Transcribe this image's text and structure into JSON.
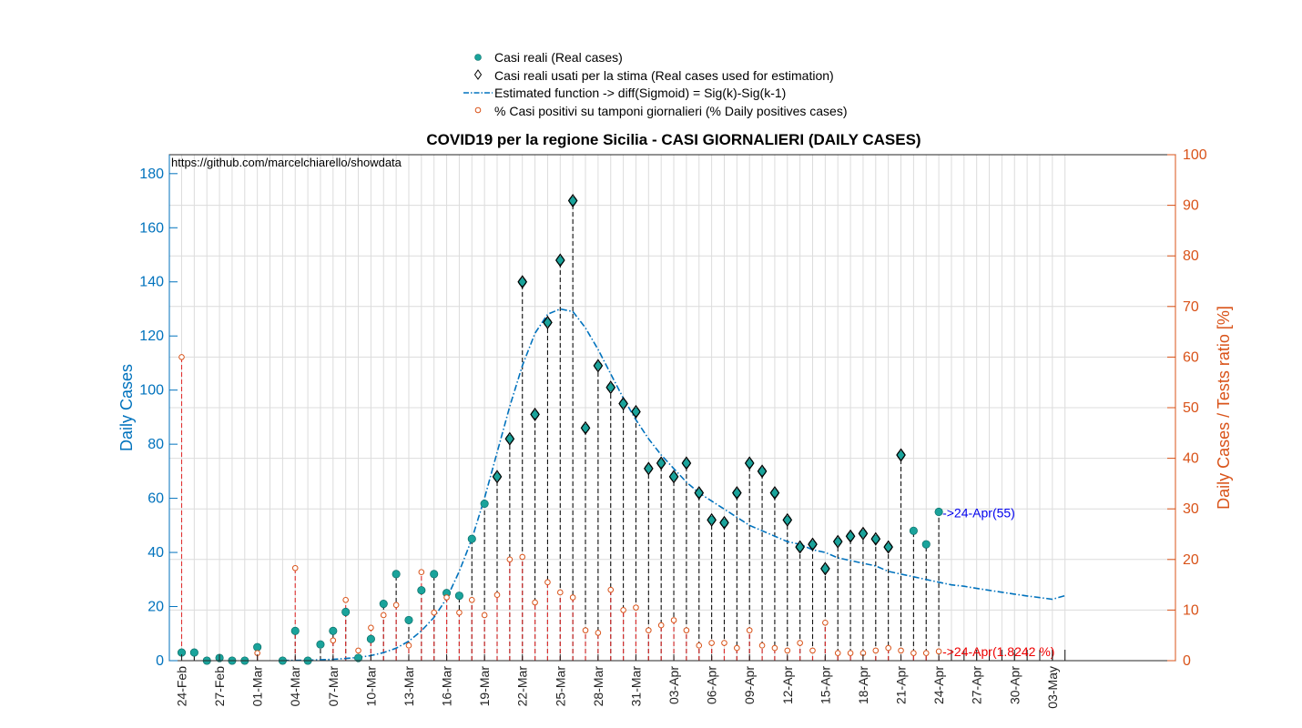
{
  "chart_data": {
    "type": "line",
    "title": "COVID19 per la regione Sicilia - CASI GIORNALIERI (DAILY CASES)",
    "annotation_url": "https://github.com/marcelchiarello/showdata",
    "ylabel_left": "Daily Cases",
    "ylabel_right": "Daily Cases / Tests ratio [%]",
    "ylim_left": [
      0,
      187
    ],
    "ylim_right": [
      0,
      100
    ],
    "yticks_left": [
      "0",
      "20",
      "40",
      "60",
      "80",
      "100",
      "120",
      "140",
      "160",
      "180"
    ],
    "yticks_right": [
      "0",
      "10",
      "20",
      "30",
      "40",
      "50",
      "60",
      "70",
      "80",
      "90",
      "100"
    ],
    "xticks": [
      "24-Feb",
      "27-Feb",
      "01-Mar",
      "04-Mar",
      "07-Mar",
      "10-Mar",
      "13-Mar",
      "16-Mar",
      "19-Mar",
      "22-Mar",
      "25-Mar",
      "28-Mar",
      "31-Mar",
      "03-Apr",
      "06-Apr",
      "09-Apr",
      "12-Apr",
      "15-Apr",
      "18-Apr",
      "21-Apr",
      "24-Apr",
      "27-Apr",
      "30-Apr",
      "03-May"
    ],
    "x_start": "24-Feb",
    "grid": true,
    "legend_position": "top",
    "colors": {
      "left_axis": "#0072BD",
      "right_axis": "#D95319",
      "real": "#1AA39B",
      "fit": "#0072BD",
      "pct": "#D95319",
      "stem_pct": "#E03030",
      "annot_cases": "#0000EE",
      "annot_pct": "#EE0000"
    },
    "series": [
      {
        "name": "Casi reali (Real cases)",
        "values": [
          3,
          3,
          0,
          1,
          0,
          0,
          5,
          null,
          0,
          11,
          0,
          6,
          11,
          18,
          1,
          8,
          21,
          32,
          15,
          26,
          32,
          25,
          24,
          45,
          58,
          68,
          82,
          140,
          91,
          125,
          148,
          170,
          86,
          109,
          101,
          95,
          92,
          71,
          73,
          68,
          73,
          62,
          52,
          51,
          62,
          73,
          70,
          62,
          52,
          42,
          43,
          34,
          44,
          46,
          47,
          45,
          42,
          76,
          48,
          43,
          55
        ]
      },
      {
        "name": "Casi reali usati per la stima (Real cases used for estimation)",
        "values": [
          null,
          null,
          null,
          null,
          null,
          null,
          null,
          null,
          null,
          null,
          null,
          null,
          null,
          null,
          null,
          null,
          null,
          null,
          null,
          null,
          null,
          null,
          null,
          null,
          null,
          68,
          82,
          140,
          91,
          125,
          148,
          170,
          86,
          109,
          101,
          95,
          92,
          71,
          73,
          68,
          73,
          62,
          52,
          51,
          62,
          73,
          70,
          62,
          52,
          42,
          43,
          34,
          44,
          46,
          47,
          45,
          42,
          76,
          null,
          null,
          null
        ]
      },
      {
        "name": "Estimated function -> diff(Sigmoid) = Sig(k)-Sig(k-1)",
        "x_range": [
          8,
          70
        ],
        "values": [
          0.1,
          0.1,
          0.2,
          0.3,
          0.5,
          0.8,
          1.2,
          1.9,
          3,
          4.6,
          7.2,
          11,
          16,
          23,
          33,
          45,
          60,
          77,
          94,
          109,
          121,
          128,
          130,
          129,
          123,
          115,
          106,
          97,
          89,
          82,
          76,
          71,
          66,
          62,
          59,
          56,
          53,
          50,
          48,
          46,
          44,
          43,
          41,
          40,
          38,
          37,
          36,
          35,
          33,
          32,
          31,
          30,
          29,
          28,
          27.5,
          26.7,
          26,
          25.3,
          24.6,
          23.9,
          23.3,
          22.7,
          24
        ]
      },
      {
        "name": "% Casi positivi su tamponi giornalieri (% Daily positives cases)",
        "values": [
          60,
          null,
          null,
          null,
          null,
          null,
          1.5,
          null,
          null,
          18.3,
          null,
          null,
          4,
          12,
          2,
          6.5,
          9,
          11,
          3,
          17.5,
          9.5,
          12.5,
          9.5,
          12,
          9,
          13,
          20,
          20.5,
          11.5,
          15.5,
          13.5,
          12.5,
          6,
          5.5,
          14,
          10,
          10.5,
          6,
          7,
          8,
          6,
          3,
          3.5,
          3.5,
          2.5,
          6,
          3,
          2.5,
          2,
          3.5,
          2,
          7.5,
          1.5,
          1.5,
          1.5,
          2,
          2.5,
          2,
          1.5,
          1.5,
          1.8242
        ]
      }
    ],
    "annotations": [
      {
        "x": 60,
        "y": 55,
        "text": "->24-Apr(55)"
      },
      {
        "x": 60,
        "y": 1.8242,
        "text": "->24-Apr(1.8242 %)"
      }
    ]
  },
  "legend": [
    {
      "label": "Casi reali (Real cases)"
    },
    {
      "label": "Casi reali usati per la stima (Real cases used for estimation)"
    },
    {
      "label": "Estimated function -> diff(Sigmoid) = Sig(k)-Sig(k-1)"
    },
    {
      "label": "% Casi positivi su tamponi giornalieri (% Daily positives cases)"
    }
  ]
}
